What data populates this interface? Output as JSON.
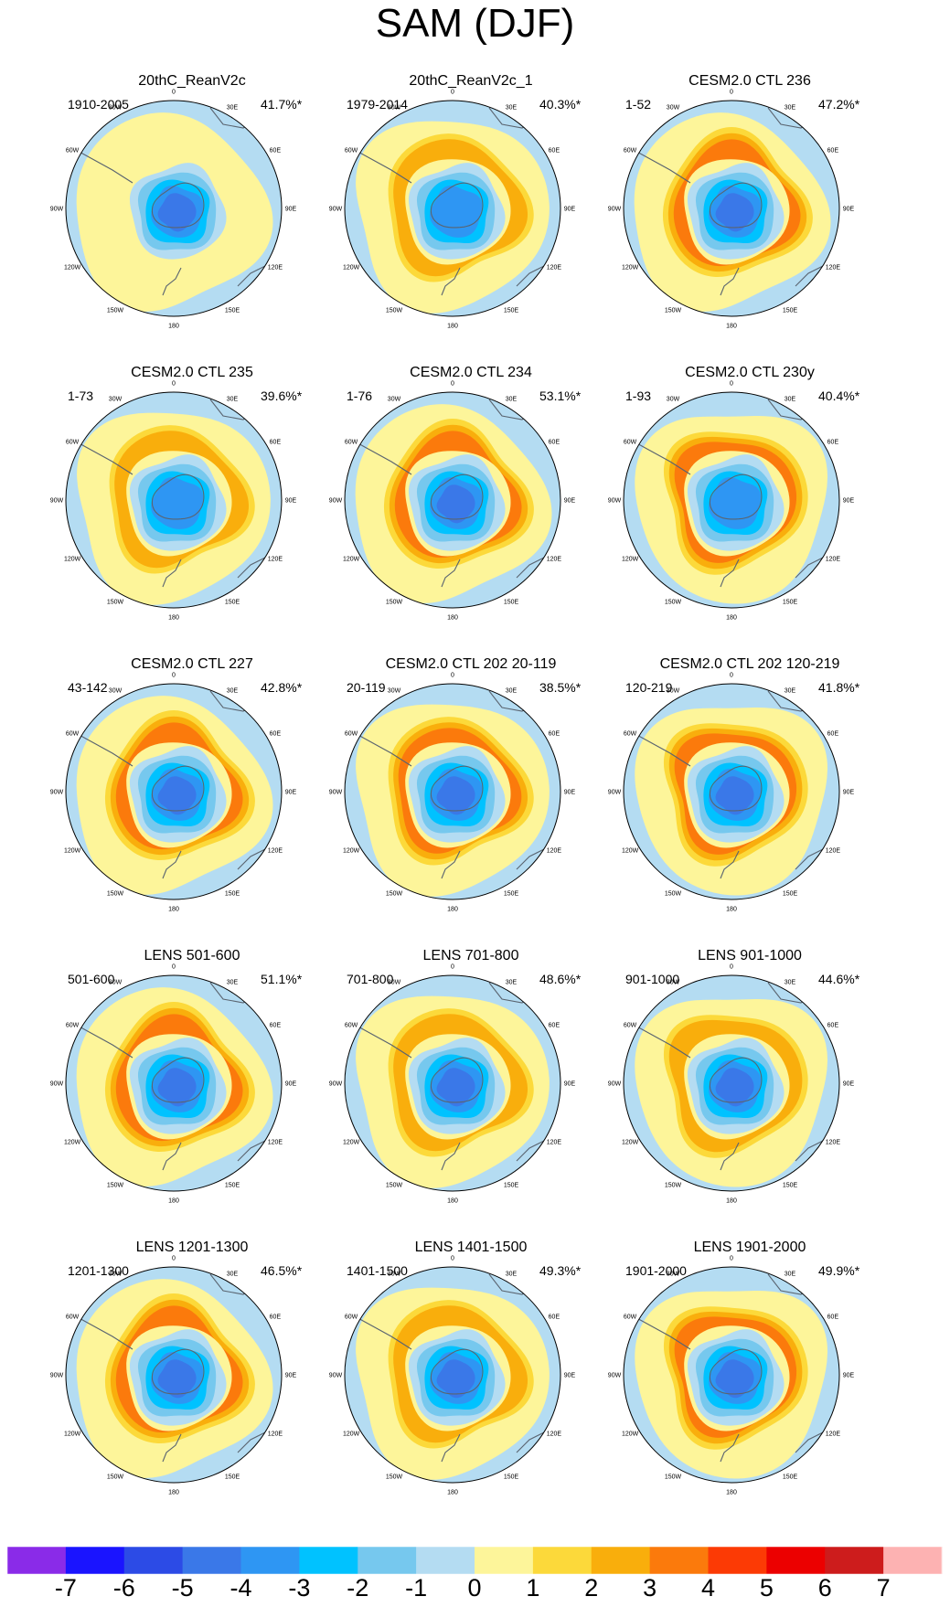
{
  "title": "SAM (DJF)",
  "lon_labels": [
    "0",
    "30E",
    "60E",
    "90E",
    "120E",
    "150E",
    "180",
    "150W",
    "120W",
    "90W",
    "60W",
    "30W"
  ],
  "chart_data": {
    "type": "polar-contour-map-grid",
    "projection": "south-polar-stereographic",
    "panels": [
      {
        "title": "20thC_ReanV2c",
        "period": "1910-2005",
        "variance": "41.7%*",
        "min_level": -5,
        "ring_peak": 0,
        "ring_shift": 0
      },
      {
        "title": "20thC_ReanV2c_1",
        "period": "1979-2014",
        "variance": "40.3%*",
        "min_level": -4,
        "ring_peak": 2,
        "ring_shift": 1
      },
      {
        "title": "CESM2.0 CTL 236",
        "period": "1-52",
        "variance": "47.2%*",
        "min_level": -5,
        "ring_peak": 3,
        "ring_shift": 0
      },
      {
        "title": "CESM2.0 CTL 235",
        "period": "1-73",
        "variance": "39.6%*",
        "min_level": -4,
        "ring_peak": 2,
        "ring_shift": 1
      },
      {
        "title": "CESM2.0 CTL 234",
        "period": "1-76",
        "variance": "53.1%*",
        "min_level": -5,
        "ring_peak": 3,
        "ring_shift": 0
      },
      {
        "title": "CESM2.0 CTL 230y",
        "period": "1-93",
        "variance": "40.4%*",
        "min_level": -4,
        "ring_peak": 3,
        "ring_shift": 2
      },
      {
        "title": "CESM2.0 CTL 227",
        "period": "43-142",
        "variance": "42.8%*",
        "min_level": -5,
        "ring_peak": 3,
        "ring_shift": 0
      },
      {
        "title": "CESM2.0 CTL 202 20-119",
        "period": "20-119",
        "variance": "38.5%*",
        "min_level": -5,
        "ring_peak": 3,
        "ring_shift": 1
      },
      {
        "title": "CESM2.0 CTL 202 120-219",
        "period": "120-219",
        "variance": "41.8%*",
        "min_level": -5,
        "ring_peak": 3,
        "ring_shift": 2
      },
      {
        "title": "LENS 501-600",
        "period": "501-600",
        "variance": "51.1%*",
        "min_level": -5,
        "ring_peak": 3,
        "ring_shift": 0
      },
      {
        "title": "LENS 701-800",
        "period": "701-800",
        "variance": "48.6%*",
        "min_level": -5,
        "ring_peak": 2,
        "ring_shift": 1
      },
      {
        "title": "LENS 901-1000",
        "period": "901-1000",
        "variance": "44.6%*",
        "min_level": -5,
        "ring_peak": 2,
        "ring_shift": 2
      },
      {
        "title": "LENS 1201-1300",
        "period": "1201-1300",
        "variance": "46.5%*",
        "min_level": -5,
        "ring_peak": 3,
        "ring_shift": 0
      },
      {
        "title": "LENS 1401-1500",
        "period": "1401-1500",
        "variance": "49.3%*",
        "min_level": -5,
        "ring_peak": 2,
        "ring_shift": 1
      },
      {
        "title": "LENS 1901-2000",
        "period": "1901-2000",
        "variance": "49.9%*",
        "min_level": -5,
        "ring_peak": 3,
        "ring_shift": 2
      }
    ],
    "colorbar": {
      "ticks": [
        "-7",
        "-6",
        "-5",
        "-4",
        "-3",
        "-2",
        "-1",
        "0",
        "1",
        "2",
        "3",
        "4",
        "5",
        "6",
        "7"
      ],
      "colors": [
        "#8a2be8",
        "#1a14ff",
        "#2c4be6",
        "#3a78e8",
        "#2e96f3",
        "#00c2ff",
        "#76c8ee",
        "#b4dcf2",
        "#fdf59a",
        "#fcd93a",
        "#f9ae0c",
        "#fb7a0c",
        "#fc3a05",
        "#ec0000",
        "#cd1c1c",
        "#fdb2b2"
      ]
    }
  }
}
